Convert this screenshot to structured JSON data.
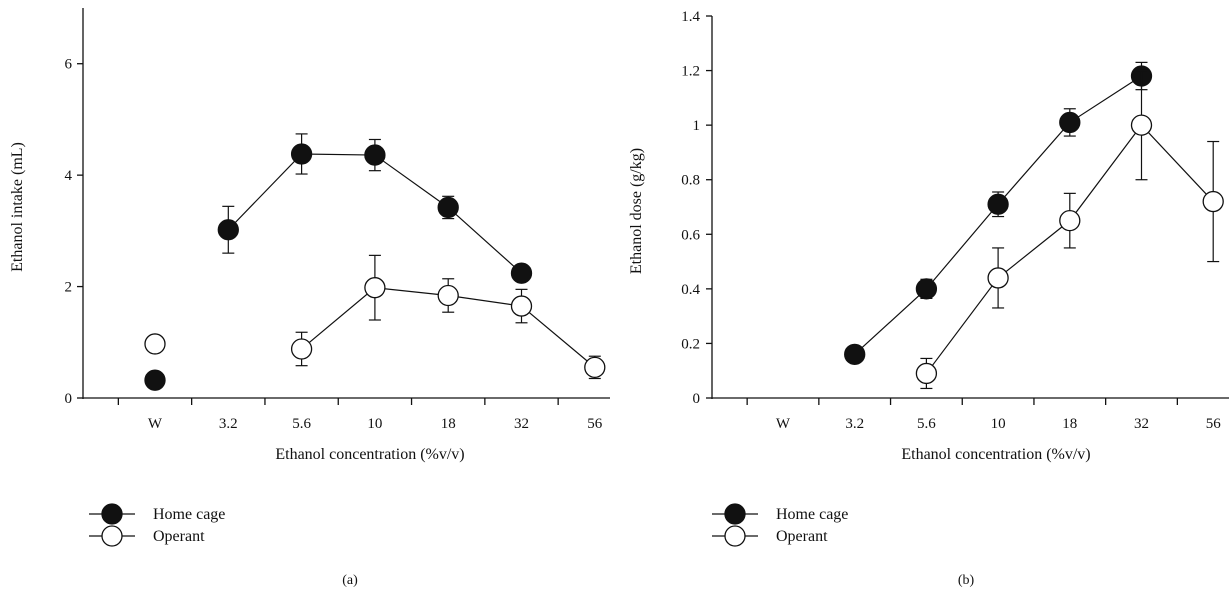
{
  "chart_data": [
    {
      "type": "line",
      "panel_label": "(a)",
      "xlabel": "Ethanol concentration (%v/v)",
      "ylabel": "Ethanol intake (mL)",
      "categories": [
        "W",
        "3.2",
        "5.6",
        "10",
        "18",
        "32",
        "56"
      ],
      "ylim": [
        0,
        7
      ],
      "yticks": [
        0,
        2,
        4,
        6
      ],
      "grid": false,
      "legend_position": "bottom-left",
      "series": [
        {
          "name": "Home cage",
          "marker": "filled-circle",
          "color": "#111111",
          "values": [
            0.32,
            3.02,
            4.38,
            4.36,
            3.42,
            2.24,
            null
          ],
          "errors": [
            0,
            0.42,
            0.36,
            0.28,
            0.2,
            0,
            null
          ],
          "connected": [
            false,
            true,
            true,
            true,
            true,
            true,
            false
          ]
        },
        {
          "name": "Operant",
          "marker": "open-circle",
          "color": "#111111",
          "values": [
            0.97,
            null,
            0.88,
            1.98,
            1.84,
            1.65,
            0.55
          ],
          "errors": [
            0,
            null,
            0.3,
            0.58,
            0.3,
            0.3,
            0.2
          ],
          "connected": [
            false,
            false,
            true,
            true,
            true,
            true,
            true
          ]
        }
      ]
    },
    {
      "type": "line",
      "panel_label": "(b)",
      "xlabel": "Ethanol concentration (%v/v)",
      "ylabel": "Ethanol dose (g/kg)",
      "categories": [
        "W",
        "3.2",
        "5.6",
        "10",
        "18",
        "32",
        "56"
      ],
      "ylim": [
        0,
        1.4
      ],
      "yticks": [
        0,
        0.2,
        0.4,
        0.6,
        0.8,
        1,
        1.2,
        1.4
      ],
      "grid": false,
      "legend_position": "bottom-left",
      "series": [
        {
          "name": "Home cage",
          "marker": "filled-circle",
          "color": "#111111",
          "values": [
            null,
            0.16,
            0.4,
            0.71,
            1.01,
            1.18,
            null
          ],
          "errors": [
            null,
            0,
            0.035,
            0.045,
            0.05,
            0.05,
            null
          ],
          "connected": [
            false,
            true,
            true,
            true,
            true,
            true,
            false
          ]
        },
        {
          "name": "Operant",
          "marker": "open-circle",
          "color": "#111111",
          "values": [
            null,
            null,
            0.09,
            0.44,
            0.65,
            1.0,
            0.72
          ],
          "errors": [
            null,
            null,
            0.055,
            0.11,
            0.1,
            0.2,
            0.22
          ],
          "connected": [
            false,
            false,
            true,
            true,
            true,
            true,
            true
          ]
        }
      ]
    }
  ]
}
